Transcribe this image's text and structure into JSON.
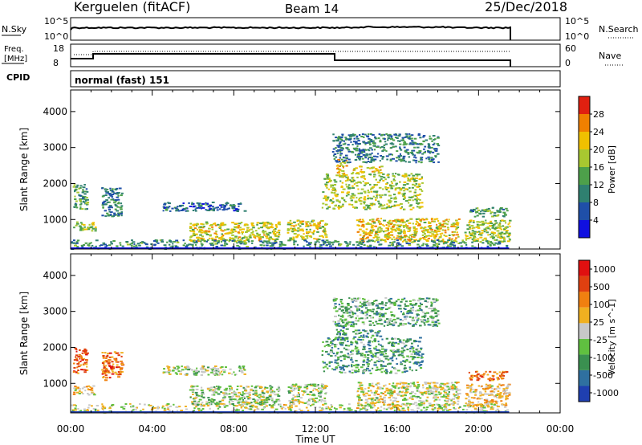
{
  "header": {
    "station": "Kerguelen (fitACF)",
    "beam": "Beam 14",
    "date": "25/Dec/2018"
  },
  "noise_panel": {
    "left_label": "N.Sky",
    "left_ticks": [
      "10^5",
      "10^0"
    ],
    "right_ticks": [
      "10^5",
      "10^0"
    ],
    "right_label": "N.Search"
  },
  "freq_panel": {
    "left_label_1": "Freq.",
    "left_label_2": "[MHz]",
    "left_ticks": [
      "18",
      "8"
    ],
    "right_ticks": [
      "60",
      "0"
    ],
    "right_label": "Nave"
  },
  "cpid_panel": {
    "label": "CPID",
    "mode": "normal (fast) 151"
  },
  "chart_data": [
    {
      "type": "heatmap",
      "name": "power",
      "ylabel": "Slant Range [km]",
      "yticks": [
        "1000",
        "2000",
        "3000",
        "4000"
      ],
      "ylim": [
        180,
        4600
      ],
      "xlim": [
        0,
        24
      ],
      "colorbar_label": "Power [dB]",
      "colorbar_ticks": [
        "4",
        "8",
        "12",
        "16",
        "20",
        "24",
        "28"
      ],
      "colors": [
        "#1010e0",
        "#1f4fa8",
        "#2f8070",
        "#4da04a",
        "#a8c830",
        "#f0c000",
        "#f08000",
        "#e02010"
      ],
      "regions": [
        {
          "t0": 0.1,
          "t1": 0.8,
          "r0": 1300,
          "r1": 2000,
          "v": 0.4
        },
        {
          "t0": 0.1,
          "t1": 1.2,
          "r0": 700,
          "r1": 950,
          "v": 0.55
        },
        {
          "t0": 1.5,
          "t1": 2.5,
          "r0": 1100,
          "r1": 1900,
          "v": 0.3
        },
        {
          "t0": 4.5,
          "t1": 8.5,
          "r0": 1250,
          "r1": 1500,
          "v": 0.25
        },
        {
          "t0": 5.8,
          "t1": 10.2,
          "r0": 400,
          "r1": 950,
          "v": 0.6
        },
        {
          "t0": 10.6,
          "t1": 12.5,
          "r0": 450,
          "r1": 1000,
          "v": 0.6
        },
        {
          "t0": 12.3,
          "t1": 17.2,
          "r0": 1300,
          "r1": 2300,
          "v": 0.55
        },
        {
          "t0": 13.0,
          "t1": 13.5,
          "r0": 2200,
          "r1": 2700,
          "v": 0.7
        },
        {
          "t0": 13.8,
          "t1": 15.2,
          "r0": 2300,
          "r1": 2500,
          "v": 0.65
        },
        {
          "t0": 12.8,
          "t1": 18.0,
          "r0": 2600,
          "r1": 3400,
          "v": 0.3
        },
        {
          "t0": 14.0,
          "t1": 19.0,
          "r0": 400,
          "r1": 1050,
          "v": 0.65
        },
        {
          "t0": 19.5,
          "t1": 21.4,
          "r0": 1100,
          "r1": 1350,
          "v": 0.4
        },
        {
          "t0": 19.3,
          "t1": 21.5,
          "r0": 400,
          "r1": 1000,
          "v": 0.55
        },
        {
          "t0": 0.0,
          "t1": 21.5,
          "r0": 200,
          "r1": 450,
          "v": 0.35
        }
      ]
    },
    {
      "type": "heatmap",
      "name": "velocity",
      "ylabel": "Slant Range [km]",
      "yticks": [
        "1000",
        "2000",
        "3000",
        "4000"
      ],
      "ylim": [
        180,
        4600
      ],
      "xlim": [
        0,
        24
      ],
      "colorbar_label": "Velocity [m s^-1]",
      "colorbar_ticks": [
        "1000",
        "500",
        "100",
        "25",
        "-25",
        "-100",
        "-500",
        "-1000"
      ],
      "colors": [
        "#1f3fb0",
        "#2f70a0",
        "#3a9050",
        "#60c040",
        "#c8c8c8",
        "#f0b020",
        "#f08010",
        "#e04010",
        "#e01010"
      ],
      "regions": [
        {
          "t0": 0.1,
          "t1": 0.8,
          "r0": 1300,
          "r1": 2000,
          "v": 0.8
        },
        {
          "t0": 0.1,
          "t1": 1.2,
          "r0": 700,
          "r1": 950,
          "v": 0.55
        },
        {
          "t0": 1.5,
          "t1": 2.5,
          "r0": 1100,
          "r1": 1900,
          "v": 0.75
        },
        {
          "t0": 4.5,
          "t1": 8.5,
          "r0": 1250,
          "r1": 1500,
          "v": 0.45
        },
        {
          "t0": 5.8,
          "t1": 10.2,
          "r0": 400,
          "r1": 950,
          "v": 0.45
        },
        {
          "t0": 10.6,
          "t1": 12.5,
          "r0": 450,
          "r1": 1000,
          "v": 0.45
        },
        {
          "t0": 12.3,
          "t1": 17.2,
          "r0": 1300,
          "r1": 2300,
          "v": 0.3
        },
        {
          "t0": 13.0,
          "t1": 13.5,
          "r0": 2200,
          "r1": 2700,
          "v": 0.25
        },
        {
          "t0": 13.8,
          "t1": 15.2,
          "r0": 2300,
          "r1": 2500,
          "v": 0.3
        },
        {
          "t0": 12.8,
          "t1": 18.0,
          "r0": 2600,
          "r1": 3400,
          "v": 0.35
        },
        {
          "t0": 14.0,
          "t1": 19.0,
          "r0": 400,
          "r1": 1050,
          "v": 0.5
        },
        {
          "t0": 19.5,
          "t1": 21.4,
          "r0": 1100,
          "r1": 1350,
          "v": 0.75
        },
        {
          "t0": 19.3,
          "t1": 21.5,
          "r0": 400,
          "r1": 1000,
          "v": 0.6
        },
        {
          "t0": 0.0,
          "t1": 21.5,
          "r0": 200,
          "r1": 450,
          "v": 0.5
        }
      ]
    }
  ],
  "time_axis": {
    "ticks": [
      "00:00",
      "04:00",
      "08:00",
      "12:00",
      "16:00",
      "20:00",
      "00:00"
    ],
    "label": "Time UT"
  }
}
